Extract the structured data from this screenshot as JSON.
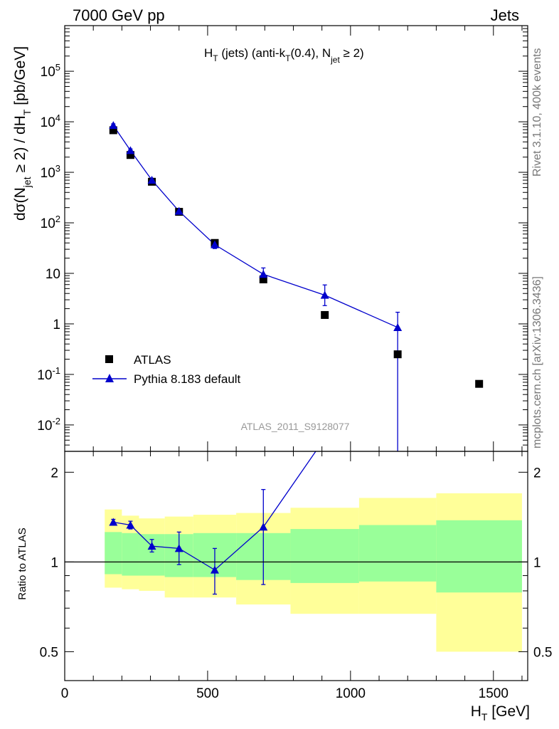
{
  "header": {
    "left": "7000 GeV pp",
    "right": "Jets"
  },
  "side_labels": {
    "rivet": "Rivet 3.1.10,  400k events",
    "mcplots": "mcplots.cern.ch [arXiv:1306.3436]"
  },
  "chart_data": [
    {
      "type": "scatter",
      "title": "H_T (jets) (anti-k_T(0.4), N_jet ≥ 2)",
      "ylabel": "dσ(N_jet ≥ 2) / dH_T [pb/GeV]",
      "xlim": [
        0,
        1620
      ],
      "ylim": [
        0.003,
        800000
      ],
      "yscale": "log",
      "watermark": "ATLAS_2011_S9128077",
      "legend_position": "lower-left",
      "y_tick_labels": [
        "10^-2",
        "10^-1",
        "1",
        "10",
        "10^2",
        "10^3",
        "10^4",
        "10^5"
      ],
      "series": [
        {
          "name": "ATLAS",
          "marker": "square",
          "color": "#000000",
          "x": [
            170,
            230,
            305,
            400,
            525,
            695,
            910,
            1165,
            1450
          ],
          "y": [
            6800,
            2200,
            650,
            165,
            40,
            7.6,
            1.5,
            0.25,
            0.065
          ]
        },
        {
          "name": "Pythia 8.183 default",
          "marker": "triangle",
          "color": "#0000cc",
          "x": [
            170,
            230,
            305,
            400,
            525,
            695,
            910,
            1165
          ],
          "y": [
            8500,
            2700,
            700,
            170,
            37,
            9.6,
            3.7,
            0.85
          ],
          "err_low": [
            600,
            200,
            60,
            18,
            6,
            2.8,
            1.4,
            0.85
          ],
          "err_high": [
            600,
            200,
            60,
            18,
            6,
            3.2,
            2.2,
            0.85
          ]
        }
      ]
    },
    {
      "type": "line",
      "ylabel": "Ratio to ATLAS",
      "xlabel": "H_T [GeV]",
      "xlim": [
        0,
        1620
      ],
      "ylim": [
        0.4,
        2.35
      ],
      "yscale": "log",
      "x_tick_labels": [
        "0",
        "500",
        "1000",
        "1500"
      ],
      "y_tick_labels": [
        "0.5",
        "1",
        "2"
      ],
      "bands": {
        "edges": [
          140,
          200,
          260,
          350,
          450,
          600,
          790,
          1030,
          1300,
          1600
        ],
        "yellow": [
          [
            0.82,
            1.5
          ],
          [
            0.81,
            1.43
          ],
          [
            0.8,
            1.4
          ],
          [
            0.76,
            1.42
          ],
          [
            0.76,
            1.44
          ],
          [
            0.72,
            1.46
          ],
          [
            0.67,
            1.52
          ],
          [
            0.67,
            1.64
          ],
          [
            0.5,
            1.7
          ]
        ],
        "green": [
          [
            0.91,
            1.26
          ],
          [
            0.9,
            1.25
          ],
          [
            0.9,
            1.24
          ],
          [
            0.89,
            1.24
          ],
          [
            0.89,
            1.25
          ],
          [
            0.87,
            1.25
          ],
          [
            0.85,
            1.29
          ],
          [
            0.86,
            1.33
          ],
          [
            0.79,
            1.38
          ]
        ],
        "yellow_color": "#ffff99",
        "green_color": "#99ff99"
      },
      "series": [
        {
          "name": "Pythia 8.183 default",
          "color": "#0000cc",
          "x": [
            170,
            230,
            305,
            400,
            525,
            695,
            910
          ],
          "y": [
            1.36,
            1.33,
            1.13,
            1.11,
            0.94,
            1.31,
            2.6
          ],
          "err_low": [
            0.03,
            0.04,
            0.05,
            0.13,
            0.16,
            0.47,
            0
          ],
          "err_high": [
            0.03,
            0.04,
            0.06,
            0.15,
            0.17,
            0.44,
            0
          ]
        }
      ]
    }
  ]
}
